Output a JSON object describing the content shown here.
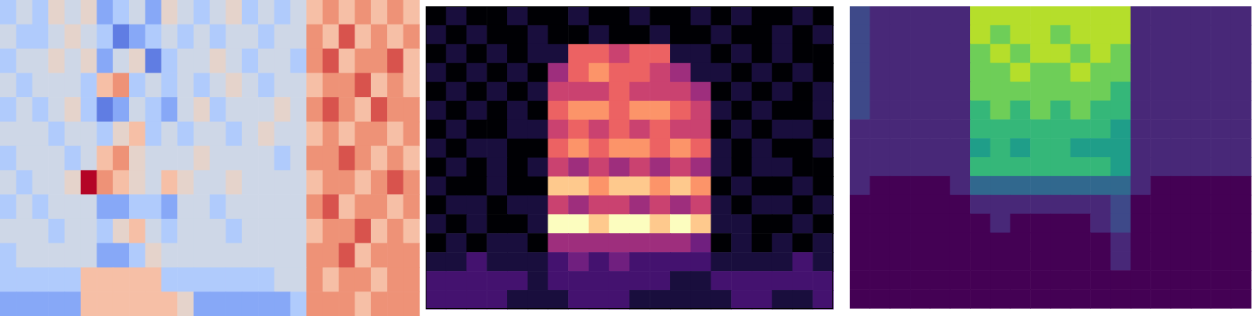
{
  "chart_data": [
    {
      "type": "heatmap",
      "color": "coolwarm",
      "clim": [
        0,
        9
      ],
      "tick_labels": false,
      "cells": [
        [
          3,
          4,
          3,
          5,
          4,
          5,
          2,
          3,
          4,
          2,
          5,
          4,
          3,
          4,
          5,
          3,
          4,
          3,
          4,
          6,
          7,
          6,
          7,
          6,
          7,
          6
        ],
        [
          4,
          3,
          3,
          4,
          5,
          4,
          3,
          1,
          2,
          3,
          4,
          3,
          4,
          3,
          4,
          4,
          3,
          4,
          4,
          7,
          6,
          8,
          6,
          7,
          6,
          7
        ],
        [
          3,
          4,
          4,
          5,
          4,
          5,
          2,
          4,
          5,
          1,
          3,
          4,
          4,
          5,
          4,
          3,
          4,
          4,
          3,
          7,
          8,
          6,
          7,
          7,
          8,
          6
        ],
        [
          4,
          3,
          4,
          4,
          4,
          3,
          6,
          7,
          3,
          4,
          3,
          4,
          3,
          4,
          5,
          4,
          3,
          4,
          4,
          6,
          7,
          7,
          8,
          6,
          7,
          6
        ],
        [
          3,
          4,
          3,
          4,
          5,
          3,
          1,
          2,
          4,
          3,
          2,
          4,
          5,
          3,
          4,
          4,
          4,
          5,
          4,
          7,
          8,
          7,
          6,
          8,
          7,
          7
        ],
        [
          4,
          4,
          4,
          3,
          4,
          4,
          3,
          5,
          6,
          3,
          4,
          3,
          4,
          4,
          3,
          4,
          5,
          4,
          4,
          6,
          7,
          6,
          7,
          7,
          6,
          7
        ],
        [
          3,
          4,
          4,
          4,
          3,
          4,
          6,
          7,
          5,
          4,
          4,
          4,
          5,
          4,
          4,
          4,
          4,
          3,
          4,
          7,
          7,
          8,
          7,
          6,
          7,
          6
        ],
        [
          4,
          3,
          4,
          4,
          5,
          9,
          7,
          6,
          5,
          4,
          6,
          5,
          4,
          4,
          5,
          4,
          4,
          4,
          4,
          6,
          7,
          7,
          6,
          7,
          8,
          7
        ],
        [
          3,
          4,
          3,
          4,
          4,
          4,
          2,
          2,
          3,
          3,
          2,
          4,
          4,
          3,
          4,
          4,
          4,
          4,
          4,
          7,
          8,
          6,
          7,
          7,
          6,
          7
        ],
        [
          4,
          4,
          4,
          3,
          4,
          4,
          3,
          5,
          6,
          4,
          3,
          4,
          4,
          4,
          3,
          4,
          4,
          4,
          4,
          6,
          7,
          7,
          8,
          6,
          7,
          6
        ],
        [
          3,
          4,
          4,
          4,
          4,
          4,
          2,
          2,
          3,
          5,
          4,
          4,
          4,
          4,
          4,
          4,
          4,
          4,
          4,
          7,
          7,
          8,
          6,
          7,
          7,
          7
        ],
        [
          3,
          3,
          3,
          3,
          3,
          6,
          6,
          6,
          6,
          6,
          3,
          3,
          3,
          3,
          3,
          3,
          3,
          4,
          4,
          7,
          6,
          7,
          7,
          6,
          7,
          7
        ],
        [
          2,
          2,
          2,
          2,
          2,
          6,
          6,
          6,
          6,
          6,
          6,
          5,
          2,
          2,
          2,
          2,
          2,
          2,
          3,
          7,
          7,
          7,
          6,
          7,
          7,
          7
        ]
      ]
    },
    {
      "type": "heatmap",
      "color": "magma",
      "clim": [
        0,
        9
      ],
      "tick_labels": false,
      "cells": [
        [
          0,
          1,
          0,
          0,
          1,
          0,
          0,
          1,
          0,
          0,
          1,
          0,
          0,
          1,
          0,
          1,
          0,
          0,
          1,
          0
        ],
        [
          1,
          0,
          1,
          0,
          0,
          1,
          0,
          0,
          1,
          0,
          0,
          1,
          0,
          0,
          1,
          0,
          0,
          1,
          0,
          1
        ],
        [
          0,
          1,
          0,
          1,
          0,
          1,
          1,
          6,
          6,
          5,
          6,
          6,
          1,
          1,
          0,
          1,
          0,
          1,
          0,
          0
        ],
        [
          1,
          0,
          1,
          0,
          1,
          0,
          4,
          6,
          7,
          6,
          6,
          5,
          4,
          1,
          1,
          0,
          1,
          0,
          1,
          0
        ],
        [
          0,
          1,
          0,
          1,
          0,
          1,
          5,
          5,
          5,
          6,
          5,
          5,
          5,
          4,
          0,
          1,
          0,
          1,
          0,
          1
        ],
        [
          1,
          0,
          1,
          0,
          1,
          0,
          6,
          7,
          7,
          6,
          7,
          7,
          6,
          5,
          1,
          0,
          1,
          0,
          0,
          1
        ],
        [
          0,
          1,
          0,
          0,
          1,
          1,
          5,
          6,
          5,
          6,
          5,
          6,
          5,
          5,
          0,
          1,
          0,
          1,
          1,
          0
        ],
        [
          1,
          0,
          1,
          1,
          0,
          0,
          6,
          7,
          6,
          7,
          7,
          6,
          7,
          6,
          1,
          0,
          1,
          0,
          0,
          1
        ],
        [
          0,
          1,
          0,
          1,
          0,
          1,
          5,
          4,
          5,
          4,
          5,
          4,
          5,
          4,
          1,
          0,
          1,
          1,
          0,
          0
        ],
        [
          1,
          0,
          0,
          1,
          0,
          0,
          8,
          8,
          7,
          8,
          8,
          7,
          8,
          7,
          0,
          1,
          0,
          0,
          1,
          0
        ],
        [
          0,
          1,
          1,
          0,
          1,
          1,
          5,
          4,
          5,
          5,
          4,
          5,
          4,
          5,
          1,
          0,
          1,
          1,
          0,
          1
        ],
        [
          1,
          0,
          1,
          0,
          0,
          1,
          9,
          9,
          8,
          9,
          9,
          8,
          9,
          8,
          1,
          1,
          0,
          0,
          1,
          0
        ],
        [
          0,
          1,
          0,
          1,
          1,
          0,
          4,
          4,
          4,
          4,
          4,
          4,
          4,
          3,
          0,
          1,
          0,
          1,
          0,
          1
        ],
        [
          1,
          1,
          2,
          1,
          1,
          1,
          2,
          3,
          2,
          3,
          2,
          2,
          2,
          2,
          1,
          1,
          1,
          1,
          2,
          1
        ],
        [
          2,
          2,
          2,
          2,
          2,
          1,
          2,
          2,
          2,
          2,
          2,
          2,
          1,
          1,
          2,
          2,
          2,
          2,
          2,
          2
        ],
        [
          2,
          2,
          2,
          2,
          1,
          1,
          1,
          2,
          2,
          2,
          1,
          1,
          1,
          1,
          1,
          2,
          2,
          1,
          1,
          2
        ]
      ]
    },
    {
      "type": "heatmap",
      "color": "viridis",
      "clim": [
        0,
        9
      ],
      "tick_labels": false,
      "cells": [
        [
          2,
          1,
          1,
          1,
          1,
          1,
          8,
          8,
          8,
          8,
          8,
          8,
          8,
          8,
          1,
          1,
          1,
          1,
          1,
          1
        ],
        [
          2,
          1,
          1,
          1,
          1,
          1,
          8,
          7,
          8,
          8,
          7,
          8,
          8,
          8,
          1,
          1,
          1,
          1,
          1,
          1
        ],
        [
          2,
          1,
          1,
          1,
          1,
          1,
          7,
          8,
          7,
          8,
          8,
          7,
          8,
          7,
          1,
          1,
          1,
          1,
          1,
          1
        ],
        [
          2,
          1,
          1,
          1,
          1,
          1,
          7,
          7,
          8,
          7,
          7,
          8,
          7,
          7,
          1,
          1,
          1,
          1,
          1,
          1
        ],
        [
          2,
          1,
          1,
          1,
          1,
          1,
          7,
          7,
          7,
          7,
          7,
          7,
          7,
          6,
          1,
          1,
          1,
          1,
          1,
          1
        ],
        [
          2,
          1,
          1,
          1,
          1,
          1,
          6,
          7,
          6,
          7,
          6,
          7,
          6,
          6,
          1,
          1,
          1,
          1,
          1,
          1
        ],
        [
          1,
          1,
          1,
          1,
          1,
          1,
          6,
          6,
          6,
          6,
          6,
          6,
          6,
          5,
          1,
          1,
          1,
          1,
          1,
          1
        ],
        [
          1,
          1,
          1,
          1,
          1,
          1,
          5,
          6,
          5,
          6,
          6,
          5,
          5,
          5,
          1,
          1,
          1,
          1,
          1,
          1
        ],
        [
          1,
          1,
          1,
          1,
          1,
          1,
          6,
          6,
          6,
          6,
          6,
          6,
          6,
          5,
          1,
          1,
          1,
          1,
          1,
          1
        ],
        [
          1,
          0,
          0,
          0,
          0,
          1,
          3,
          3,
          3,
          3,
          3,
          3,
          3,
          3,
          1,
          0,
          0,
          0,
          0,
          0
        ],
        [
          0,
          0,
          0,
          0,
          0,
          0,
          1,
          1,
          1,
          1,
          1,
          1,
          1,
          2,
          0,
          0,
          0,
          0,
          0,
          0
        ],
        [
          0,
          0,
          0,
          0,
          0,
          0,
          0,
          1,
          0,
          0,
          0,
          0,
          1,
          2,
          0,
          0,
          0,
          0,
          0,
          0
        ],
        [
          0,
          0,
          0,
          0,
          0,
          0,
          0,
          0,
          0,
          0,
          0,
          0,
          0,
          1,
          0,
          0,
          0,
          0,
          0,
          0
        ],
        [
          0,
          0,
          0,
          0,
          0,
          0,
          0,
          0,
          0,
          0,
          0,
          0,
          0,
          1,
          0,
          0,
          0,
          0,
          0,
          0
        ],
        [
          0,
          0,
          0,
          0,
          0,
          0,
          0,
          0,
          0,
          0,
          0,
          0,
          0,
          0,
          0,
          0,
          0,
          0,
          0,
          0
        ],
        [
          0,
          0,
          0,
          0,
          0,
          0,
          0,
          0,
          0,
          0,
          0,
          0,
          0,
          0,
          0,
          0,
          0,
          0,
          0,
          0
        ]
      ]
    }
  ]
}
